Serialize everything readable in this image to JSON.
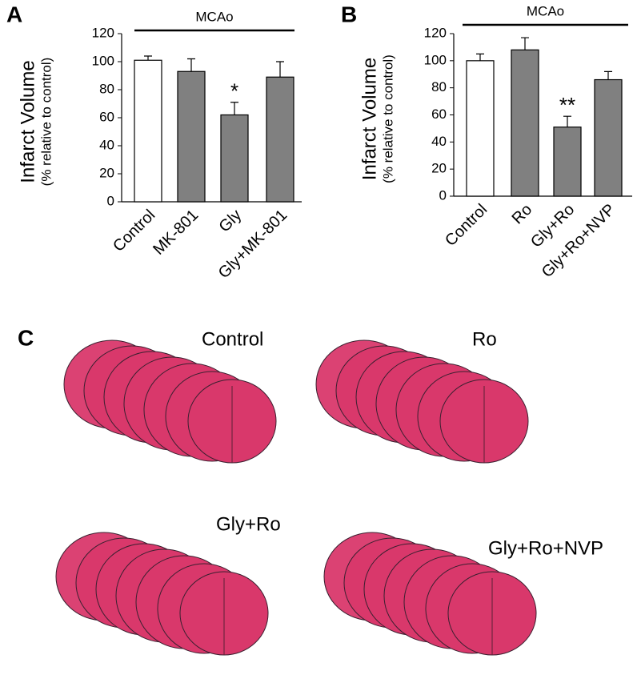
{
  "chart_data": [
    {
      "type": "bar",
      "panel": "A",
      "title": "MCAo",
      "y_label": "Infarct Volume",
      "y_sublabel": "(% relative to control)",
      "categories": [
        "Control",
        "MK-801",
        "Gly",
        "Gly+MK-801"
      ],
      "values": [
        101,
        93,
        62,
        89
      ],
      "errors": [
        3,
        9,
        9,
        11
      ],
      "colors": [
        "#ffffff",
        "#808080",
        "#808080",
        "#808080"
      ],
      "annotations": [
        null,
        null,
        "*",
        null
      ],
      "ylim": [
        0,
        120
      ],
      "yticks": [
        0,
        20,
        40,
        60,
        80,
        100,
        120
      ]
    },
    {
      "type": "bar",
      "panel": "B",
      "title": "MCAo",
      "y_label": "Infarct Volume",
      "y_sublabel": "(% relative to control)",
      "categories": [
        "Control",
        "Ro",
        "Gly+Ro",
        "Gly+Ro+NVP"
      ],
      "values": [
        100,
        108,
        51,
        86
      ],
      "errors": [
        5,
        9,
        8,
        6
      ],
      "colors": [
        "#ffffff",
        "#808080",
        "#808080",
        "#808080"
      ],
      "annotations": [
        null,
        null,
        "**",
        null
      ],
      "ylim": [
        0,
        120
      ],
      "yticks": [
        0,
        20,
        40,
        60,
        80,
        100,
        120
      ]
    }
  ],
  "panel_c": {
    "label": "C",
    "images": [
      "Control",
      "Ro",
      "Gly+Ro",
      "Gly+Ro+NVP"
    ]
  }
}
